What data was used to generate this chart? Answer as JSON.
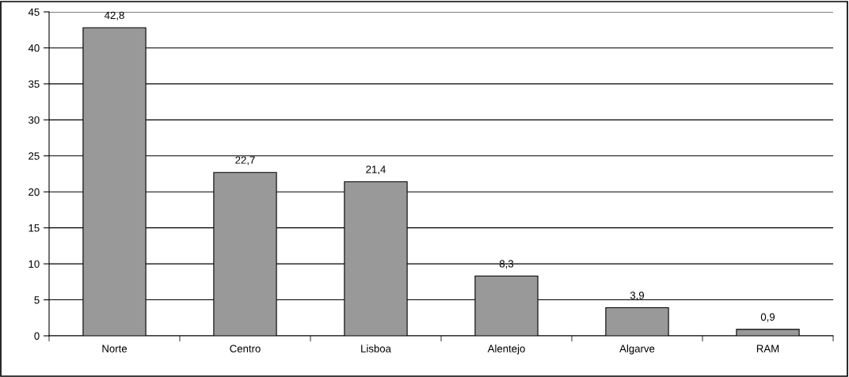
{
  "chart_data": {
    "type": "bar",
    "categories": [
      "Norte",
      "Centro",
      "Lisboa",
      "Alentejo",
      "Algarve",
      "RAM"
    ],
    "values": [
      42.8,
      22.7,
      21.4,
      8.3,
      3.9,
      0.9
    ],
    "value_labels": [
      "42,8",
      "22,7",
      "21,4",
      "8,3",
      "3,9",
      "0,9"
    ],
    "color": "#999999",
    "ylim": [
      0,
      45
    ],
    "yticks": [
      0,
      5,
      10,
      15,
      20,
      25,
      30,
      35,
      40,
      45
    ],
    "grid": "y",
    "legend": false
  }
}
